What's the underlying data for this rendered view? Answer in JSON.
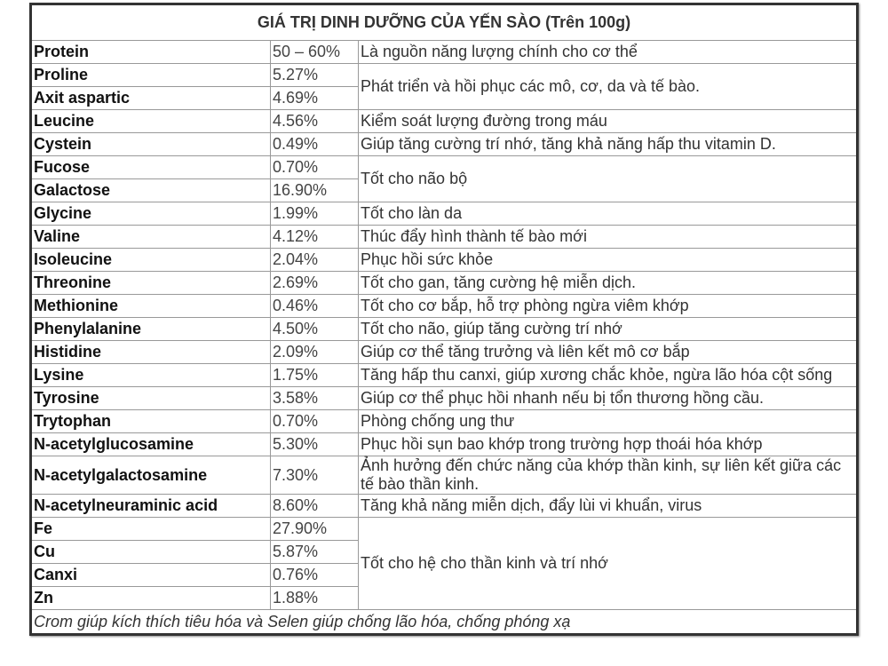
{
  "title": "GIÁ TRỊ DINH DƯỠNG CỦA YẾN SÀO (Trên 100g)",
  "rows": [
    {
      "name": "Protein",
      "value": "50 – 60%",
      "desc": "Là nguồn năng lượng chính cho cơ thể",
      "span": 1
    },
    {
      "name": "Proline",
      "value": "5.27%",
      "desc": "Phát triển và hồi phục các mô, cơ, da và tế bào.",
      "span": 2
    },
    {
      "name": "Axit aspartic",
      "value": "4.69%"
    },
    {
      "name": "Leucine",
      "value": "4.56%",
      "desc": "Kiểm soát lượng đường trong máu",
      "span": 1
    },
    {
      "name": "Cystein",
      "value": "0.49%",
      "desc": "Giúp tăng cường trí nhớ, tăng khả năng hấp thu vitamin D.",
      "span": 1
    },
    {
      "name": "Fucose",
      "value": "0.70%",
      "desc": "Tốt cho não bộ",
      "span": 2
    },
    {
      "name": "Galactose",
      "value": "16.90%"
    },
    {
      "name": "Glycine",
      "value": "1.99%",
      "desc": "Tốt cho làn da",
      "span": 1
    },
    {
      "name": "Valine",
      "value": "4.12%",
      "desc": "Thúc đẩy hình thành tế bào mới",
      "span": 1
    },
    {
      "name": "Isoleucine",
      "value": "2.04%",
      "desc": "Phục hồi sức khỏe",
      "span": 1
    },
    {
      "name": "Threonine",
      "value": "2.69%",
      "desc": "Tốt cho gan, tăng cường hệ miễn dịch.",
      "span": 1
    },
    {
      "name": "Methionine",
      "value": "0.46%",
      "desc": "Tốt cho cơ bắp, hỗ trợ phòng ngừa viêm khớp",
      "span": 1
    },
    {
      "name": "Phenylalanine",
      "value": "4.50%",
      "desc": "Tốt cho não, giúp tăng cường trí nhớ",
      "span": 1
    },
    {
      "name": "Histidine",
      "value": "2.09%",
      "desc": "Giúp cơ thể tăng trưởng và liên kết mô cơ bắp",
      "span": 1
    },
    {
      "name": "Lysine",
      "value": "1.75%",
      "desc": "Tăng hấp thu canxi, giúp xương chắc khỏe, ngừa lão hóa cột sống",
      "span": 1
    },
    {
      "name": "Tyrosine",
      "value": "3.58%",
      "desc": "Giúp cơ thể phục hồi nhanh nếu bị tổn thương hồng cầu.",
      "span": 1
    },
    {
      "name": "Trytophan",
      "value": "0.70%",
      "desc": "Phòng chống ung thư",
      "span": 1
    },
    {
      "name": "N-acetylglucosamine",
      "value": "5.30%",
      "desc": "Phục hồi sụn bao khớp trong trường hợp thoái hóa khớp",
      "span": 1
    },
    {
      "name": "N-acetylgalactosamine",
      "value": "7.30%",
      "desc": "Ảnh hưởng đến chức năng của khớp thần kinh, sự liên kết giữa các tế bào thần kinh.",
      "span": 1
    },
    {
      "name": "N-acetylneuraminic acid",
      "value": "8.60%",
      "desc": "Tăng khả năng miễn dịch, đẩy lùi vi khuẩn, virus",
      "span": 1
    },
    {
      "name": "Fe",
      "value": "27.90%",
      "desc": "Tốt cho hệ cho thần kinh và trí nhớ",
      "span": 4
    },
    {
      "name": "Cu",
      "value": "5.87%"
    },
    {
      "name": "Canxi",
      "value": "0.76%"
    },
    {
      "name": "Zn",
      "value": "1.88%"
    }
  ],
  "footer": "Crom giúp kích thích tiêu hóa và Selen giúp chống lão hóa, chống phóng xạ"
}
